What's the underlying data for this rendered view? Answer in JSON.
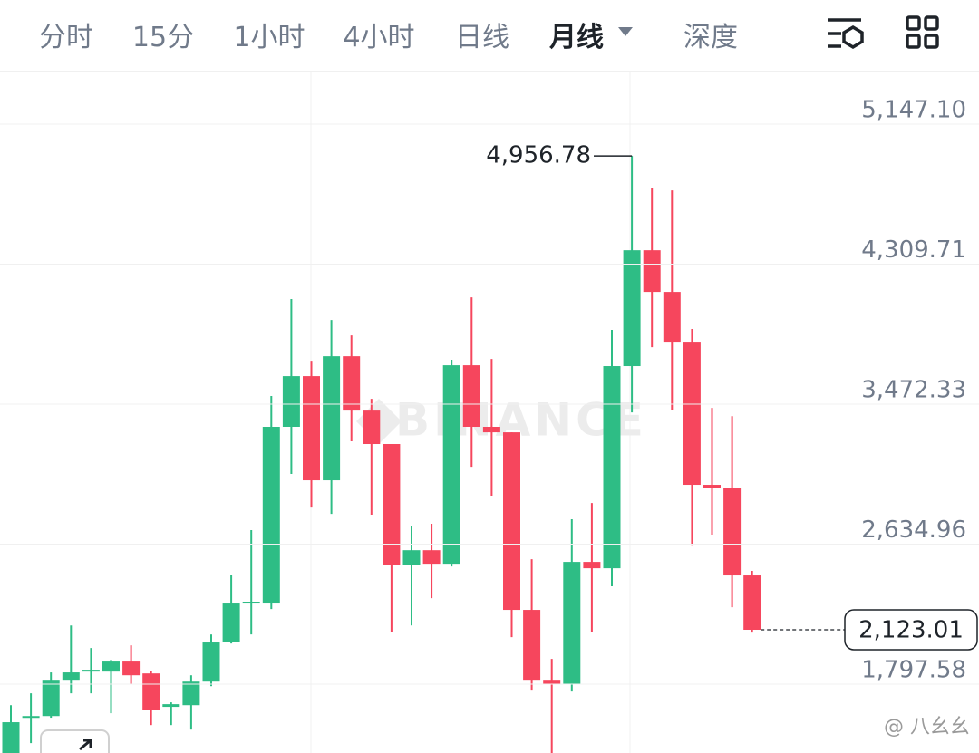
{
  "tabs": [
    {
      "label": "分时"
    },
    {
      "label": "15分"
    },
    {
      "label": "1小时"
    },
    {
      "label": "4小时"
    },
    {
      "label": "日线"
    },
    {
      "label": "月线",
      "active": true
    },
    {
      "label": "深度"
    }
  ],
  "chart_data": {
    "type": "candlestick",
    "watermark": "BINANCE",
    "up_color": "#2ebd85",
    "down_color": "#f6465d",
    "open": [
      1385,
      1597,
      1607,
      1824,
      1873,
      1873,
      1933,
      1862,
      1662,
      1672,
      1813,
      2052,
      2280,
      2280,
      3337,
      3640,
      3017,
      3759,
      3434,
      3234,
      2513,
      2599,
      2518,
      3705,
      3337,
      3304,
      2242,
      1824,
      1797,
      2529,
      2491,
      3700,
      4393,
      4144,
      3846,
      2990,
      2973,
      2448
    ],
    "high": [
      1672,
      1743,
      1868,
      2149,
      2014,
      1944,
      2030,
      1878,
      1689,
      1851,
      2095,
      2448,
      2719,
      3521,
      4101,
      3732,
      3976,
      3884,
      3504,
      3234,
      2741,
      2757,
      3738,
      4111,
      3743,
      3304,
      2545,
      1949,
      2784,
      2881,
      3917,
      4956.78,
      4767,
      4751,
      3922,
      3450,
      3401,
      2475
    ],
    "low": [
      1337,
      1445,
      1597,
      1743,
      1743,
      1624,
      1797,
      1553,
      1553,
      1526,
      1786,
      2041,
      2095,
      2247,
      3055,
      2854,
      2816,
      3250,
      2811,
      2112,
      2149,
      2312,
      2502,
      3098,
      2925,
      2079,
      1759,
      1361,
      1754,
      2112,
      2383,
      3423,
      3813,
      3439,
      2626,
      2692,
      2258,
      2106
    ],
    "close": [
      1570,
      1607,
      1824,
      1868,
      1884,
      1933,
      1851,
      1645,
      1678,
      1813,
      2047,
      2280,
      2291,
      3337,
      3640,
      3017,
      3759,
      3434,
      3234,
      2513,
      2599,
      2518,
      3705,
      3337,
      3304,
      2242,
      1824,
      1797,
      2529,
      2491,
      3700,
      4393,
      4144,
      3846,
      2990,
      2973,
      2448,
      2123.01
    ],
    "ylim": [
      1386,
      5456
    ],
    "yticks": [
      {
        "value": 5147.1,
        "label": "5,147.10"
      },
      {
        "value": 4309.71,
        "label": "4,309.71"
      },
      {
        "value": 3472.33,
        "label": "3,472.33"
      },
      {
        "value": 2634.96,
        "label": "2,634.96"
      },
      {
        "value": 1797.58,
        "label": "1,797.58"
      }
    ],
    "grid": true,
    "high_annotation": {
      "value": 4956.78,
      "label": "4,956.78"
    },
    "last_price": {
      "value": 2123.01,
      "label": "2,123.01"
    }
  },
  "footer_watermark": "@ 八幺幺"
}
